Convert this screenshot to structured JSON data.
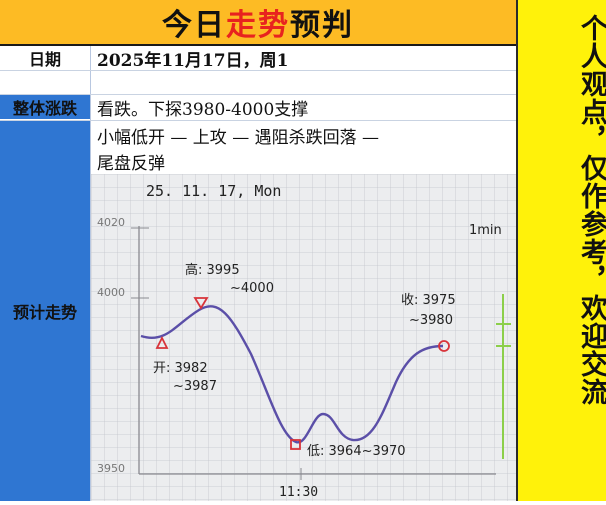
{
  "header": {
    "title_part1": "今日",
    "title_highlight": "走势",
    "title_part2": "预判"
  },
  "rows": {
    "date_label": "日期",
    "date_value": "2025年11月17日，周1",
    "overall_label": "整体涨跌",
    "overall_value": "看跌。下探3980-4000支撑",
    "trend_label": "预计走势",
    "trend_summary_line1": "小幅低开 — 上攻 — 遇阻杀跌回落 —",
    "trend_summary_line2": "尾盘反弹"
  },
  "side_note": "个人观点，仅作参考，欢迎交流",
  "sketch": {
    "date": "25. 11. 17, Mon",
    "timeframe": "1min",
    "y_top": "4020",
    "y_mid": "4000",
    "y_bottom": "3950",
    "x_label": "11:30",
    "high_label": "高: 3995",
    "high_sub": "~4000",
    "open_label": "开: 3982",
    "open_sub": "~3987",
    "low_label": "低: 3964~3970",
    "close_label": "收: 3975",
    "close_sub": "~3980"
  },
  "colors": {
    "title_bg": "#fdbb24",
    "title_highlight": "#e8231f",
    "label_blue": "#2f76d2",
    "side_bg": "#fff20a",
    "curve": "#5b4fa8",
    "marker": "#d8333a"
  }
}
